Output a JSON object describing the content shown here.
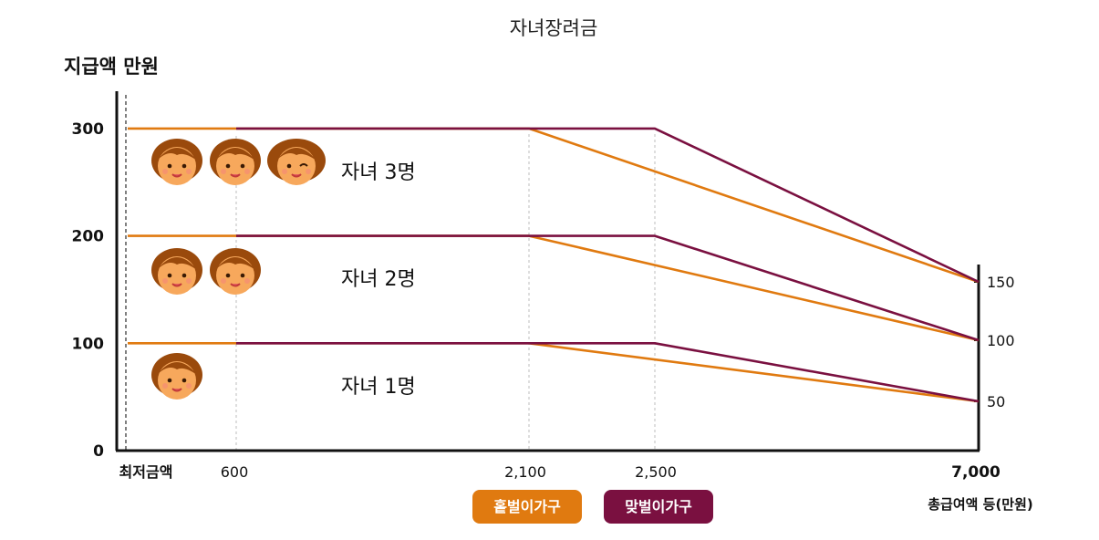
{
  "chart_data": {
    "type": "line",
    "title": "자녀장려금",
    "ylabel": "지급액 만원",
    "xlabel": "총급여액 등(만원)",
    "ylim": [
      0,
      300
    ],
    "y_ticks": [
      "0",
      "100",
      "200",
      "300"
    ],
    "x_ticks": [
      {
        "value": 0,
        "label": "최저금액"
      },
      {
        "value": 600,
        "label": "600"
      },
      {
        "value": 2100,
        "label": "2,100"
      },
      {
        "value": 2500,
        "label": "2,500"
      },
      {
        "value": 7000,
        "label": "7,000"
      }
    ],
    "right_ticks": [
      {
        "value": 150,
        "label": "150"
      },
      {
        "value": 100,
        "label": "100"
      },
      {
        "value": 50,
        "label": "50"
      }
    ],
    "groups": [
      {
        "label": "자녀 3명",
        "children": 3
      },
      {
        "label": "자녀 2명",
        "children": 2
      },
      {
        "label": "자녀 1명",
        "children": 1
      }
    ],
    "series": [
      {
        "name": "홑벌이가구",
        "color": "#e07a10",
        "group": 0,
        "x": [
          0,
          2100,
          7000
        ],
        "y": [
          300,
          300,
          150
        ]
      },
      {
        "name": "맞벌이가구",
        "color": "#7a1040",
        "group": 0,
        "x": [
          600,
          2500,
          7000
        ],
        "y": [
          300,
          300,
          150
        ]
      },
      {
        "name": "홑벌이가구",
        "color": "#e07a10",
        "group": 1,
        "x": [
          0,
          2100,
          7000
        ],
        "y": [
          200,
          200,
          100
        ]
      },
      {
        "name": "맞벌이가구",
        "color": "#7a1040",
        "group": 1,
        "x": [
          600,
          2500,
          7000
        ],
        "y": [
          200,
          200,
          100
        ]
      },
      {
        "name": "홑벌이가구",
        "color": "#e07a10",
        "group": 2,
        "x": [
          0,
          2100,
          7000
        ],
        "y": [
          100,
          100,
          50
        ]
      },
      {
        "name": "맞벌이가구",
        "color": "#7a1040",
        "group": 2,
        "x": [
          600,
          2500,
          7000
        ],
        "y": [
          100,
          100,
          50
        ]
      }
    ],
    "legend": [
      {
        "label": "홑벌이가구",
        "color": "#e07a10"
      },
      {
        "label": "맞벌이가구",
        "color": "#7a1040"
      }
    ],
    "legend_placement": "bottom-center",
    "grid": false
  }
}
